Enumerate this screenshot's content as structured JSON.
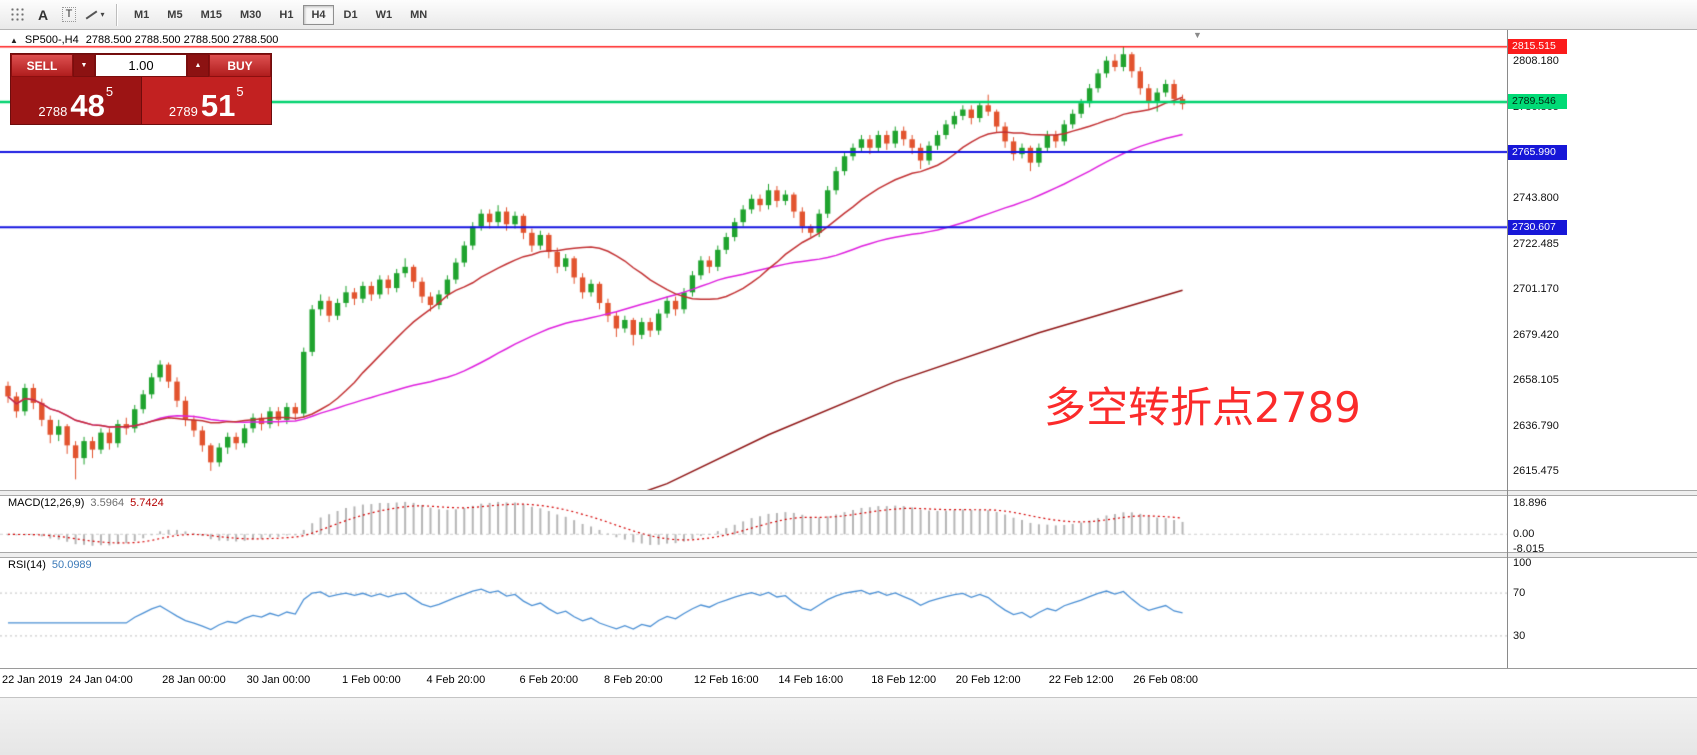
{
  "toolbar": {
    "icon_a": "A",
    "icon_t": "T",
    "timeframes": [
      "M1",
      "M5",
      "M15",
      "M30",
      "H1",
      "H4",
      "D1",
      "W1",
      "MN"
    ],
    "active_timeframe": "H4"
  },
  "chart": {
    "symbol_period": "SP500-,H4",
    "ohlc_line": "2788.500 2788.500 2788.500 2788.500",
    "annotation_text": "多空转折点2789",
    "annotation_color": "#fb2b2b",
    "axis_labels": [
      {
        "text": "2808.180",
        "price": 2808.18
      },
      {
        "text": "2786.865",
        "price": 2786.865
      },
      {
        "text": "2765.550",
        "price": 2765.55
      },
      {
        "text": "2743.800",
        "price": 2743.8
      },
      {
        "text": "2722.485",
        "price": 2722.485
      },
      {
        "text": "2701.170",
        "price": 2701.17
      },
      {
        "text": "2679.420",
        "price": 2679.42
      },
      {
        "text": "2658.105",
        "price": 2658.105
      },
      {
        "text": "2636.790",
        "price": 2636.79
      },
      {
        "text": "2615.475",
        "price": 2615.475
      }
    ],
    "price_tags": [
      {
        "text": "2815.515",
        "price": 2815.515,
        "bg": "#fb1b1b",
        "fg": "#ffffff"
      },
      {
        "text": "2789.546",
        "price": 2789.546,
        "bg": "#00db76",
        "fg": "#002510"
      },
      {
        "text": "2765.990",
        "price": 2765.99,
        "bg": "#1717d8",
        "fg": "#ffffff"
      },
      {
        "text": "2730.607",
        "price": 2730.607,
        "bg": "#1717d8",
        "fg": "#ffffff"
      }
    ],
    "hlines": [
      {
        "price": 2815.515,
        "color": "#ff1b1b",
        "width": 1.6
      },
      {
        "price": 2789.546,
        "color": "#00d26e",
        "width": 2.4
      },
      {
        "price": 2765.99,
        "color": "#1414e0",
        "width": 2
      },
      {
        "price": 2730.607,
        "color": "#1414e0",
        "width": 2
      }
    ],
    "date_labels": [
      {
        "text": "22 Jan 2019",
        "bar": 1
      },
      {
        "text": "24 Jan 04:00",
        "bar": 11
      },
      {
        "text": "28 Jan 00:00",
        "bar": 22
      },
      {
        "text": "30 Jan 00:00",
        "bar": 32
      },
      {
        "text": "1 Feb 00:00",
        "bar": 43
      },
      {
        "text": "4 Feb 20:00",
        "bar": 53
      },
      {
        "text": "6 Feb 20:00",
        "bar": 64
      },
      {
        "text": "8 Feb 20:00",
        "bar": 74
      },
      {
        "text": "12 Feb 16:00",
        "bar": 85
      },
      {
        "text": "14 Feb 16:00",
        "bar": 95
      },
      {
        "text": "18 Feb 12:00",
        "bar": 106
      },
      {
        "text": "20 Feb 12:00",
        "bar": 116
      },
      {
        "text": "22 Feb 12:00",
        "bar": 127
      },
      {
        "text": "26 Feb 08:00",
        "bar": 137
      }
    ]
  },
  "trade_panel": {
    "sell_label": "SELL",
    "buy_label": "BUY",
    "volume": "1.00",
    "sell_price_small": "2788",
    "sell_price_big": "48",
    "sell_price_sup": "5",
    "buy_price_small": "2789",
    "buy_price_big": "51",
    "buy_price_sup": "5"
  },
  "indicators": {
    "macd": {
      "label": "MACD(12,26,9)",
      "value_main": "3.5964",
      "value_signal": "5.7424",
      "fast": 12,
      "slow": 26,
      "signal": 9,
      "hist_color": "#b6b6b6",
      "signal_color": "#d40000",
      "range": [
        -9.5,
        20.5
      ],
      "axis": [
        {
          "text": "18.896",
          "v": 18.896
        },
        {
          "text": "0.00",
          "v": 0
        },
        {
          "text": "-8.015",
          "v": -8.015
        }
      ]
    },
    "rsi": {
      "label": "RSI(14)",
      "value": "50.0989",
      "period": 14,
      "levels": [
        70,
        30
      ],
      "line_color": "#4a8fd4",
      "axis": [
        {
          "text": "100",
          "v": 100
        },
        {
          "text": "70",
          "v": 70
        },
        {
          "text": "30",
          "v": 30
        }
      ]
    }
  },
  "chart_data": {
    "type": "candlestick",
    "symbol": "SP500-",
    "timeframe": "H4",
    "up_color": "#1fa32e",
    "down_color": "#e2532e",
    "ylim": [
      2607,
      2822
    ],
    "ma_fast": {
      "period": 18,
      "color": "#c23032"
    },
    "ma_mid": {
      "period": 50,
      "color": "#de1fde"
    },
    "ma_long": {
      "color": "#8f1616",
      "points": [
        [
          68,
          2596
        ],
        [
          78,
          2610
        ],
        [
          90,
          2633
        ],
        [
          105,
          2658
        ],
        [
          122,
          2681
        ],
        [
          139,
          2701
        ]
      ]
    },
    "candles": [
      [
        2656,
        2658,
        2648,
        2651
      ],
      [
        2651,
        2653,
        2641,
        2644
      ],
      [
        2644,
        2657,
        2642,
        2655
      ],
      [
        2655,
        2657,
        2645,
        2648
      ],
      [
        2648,
        2650,
        2637,
        2640
      ],
      [
        2640,
        2642,
        2629,
        2633
      ],
      [
        2633,
        2640,
        2630,
        2637
      ],
      [
        2637,
        2638,
        2624,
        2628
      ],
      [
        2628,
        2630,
        2612,
        2622
      ],
      [
        2622,
        2632,
        2619,
        2630
      ],
      [
        2630,
        2632,
        2622,
        2626
      ],
      [
        2626,
        2636,
        2624,
        2634
      ],
      [
        2634,
        2636,
        2626,
        2629
      ],
      [
        2629,
        2640,
        2627,
        2638
      ],
      [
        2638,
        2641,
        2633,
        2636
      ],
      [
        2636,
        2647,
        2634,
        2645
      ],
      [
        2645,
        2654,
        2643,
        2652
      ],
      [
        2652,
        2662,
        2650,
        2660
      ],
      [
        2660,
        2668,
        2658,
        2666
      ],
      [
        2666,
        2667,
        2655,
        2658
      ],
      [
        2658,
        2660,
        2646,
        2649
      ],
      [
        2649,
        2651,
        2637,
        2640
      ],
      [
        2640,
        2642,
        2632,
        2635
      ],
      [
        2635,
        2637,
        2625,
        2628
      ],
      [
        2628,
        2629,
        2616,
        2620
      ],
      [
        2620,
        2629,
        2618,
        2627
      ],
      [
        2627,
        2634,
        2624,
        2632
      ],
      [
        2632,
        2634,
        2626,
        2629
      ],
      [
        2629,
        2638,
        2627,
        2636
      ],
      [
        2636,
        2643,
        2634,
        2641
      ],
      [
        2641,
        2643,
        2635,
        2638
      ],
      [
        2638,
        2646,
        2636,
        2644
      ],
      [
        2644,
        2646,
        2637,
        2640
      ],
      [
        2640,
        2648,
        2638,
        2646
      ],
      [
        2646,
        2648,
        2640,
        2643
      ],
      [
        2643,
        2674,
        2641,
        2672
      ],
      [
        2672,
        2694,
        2670,
        2692
      ],
      [
        2692,
        2699,
        2689,
        2696
      ],
      [
        2696,
        2698,
        2686,
        2689
      ],
      [
        2689,
        2697,
        2687,
        2695
      ],
      [
        2695,
        2703,
        2693,
        2700
      ],
      [
        2700,
        2702,
        2694,
        2697
      ],
      [
        2697,
        2705,
        2695,
        2703
      ],
      [
        2703,
        2705,
        2696,
        2699
      ],
      [
        2699,
        2708,
        2697,
        2706
      ],
      [
        2706,
        2708,
        2699,
        2702
      ],
      [
        2702,
        2711,
        2700,
        2709
      ],
      [
        2709,
        2716,
        2707,
        2712
      ],
      [
        2712,
        2713,
        2702,
        2705
      ],
      [
        2705,
        2707,
        2695,
        2698
      ],
      [
        2698,
        2700,
        2691,
        2694
      ],
      [
        2694,
        2701,
        2692,
        2699
      ],
      [
        2699,
        2708,
        2697,
        2706
      ],
      [
        2706,
        2716,
        2704,
        2714
      ],
      [
        2714,
        2724,
        2712,
        2722
      ],
      [
        2722,
        2733,
        2720,
        2731
      ],
      [
        2731,
        2739,
        2729,
        2737
      ],
      [
        2737,
        2739,
        2730,
        2733
      ],
      [
        2733,
        2741,
        2731,
        2738
      ],
      [
        2738,
        2740,
        2729,
        2732
      ],
      [
        2732,
        2738,
        2730,
        2736
      ],
      [
        2736,
        2737,
        2725,
        2728
      ],
      [
        2728,
        2730,
        2719,
        2722
      ],
      [
        2722,
        2729,
        2720,
        2727
      ],
      [
        2727,
        2728,
        2716,
        2719
      ],
      [
        2719,
        2721,
        2709,
        2712
      ],
      [
        2712,
        2718,
        2710,
        2716
      ],
      [
        2716,
        2717,
        2704,
        2707
      ],
      [
        2707,
        2709,
        2697,
        2700
      ],
      [
        2700,
        2706,
        2698,
        2704
      ],
      [
        2704,
        2705,
        2692,
        2695
      ],
      [
        2695,
        2697,
        2686,
        2689
      ],
      [
        2689,
        2691,
        2679,
        2683
      ],
      [
        2683,
        2689,
        2681,
        2687
      ],
      [
        2687,
        2688,
        2675,
        2680
      ],
      [
        2680,
        2688,
        2678,
        2686
      ],
      [
        2686,
        2688,
        2679,
        2682
      ],
      [
        2682,
        2692,
        2680,
        2690
      ],
      [
        2690,
        2698,
        2688,
        2696
      ],
      [
        2696,
        2698,
        2689,
        2692
      ],
      [
        2692,
        2702,
        2690,
        2700
      ],
      [
        2700,
        2710,
        2698,
        2708
      ],
      [
        2708,
        2717,
        2706,
        2715
      ],
      [
        2715,
        2717,
        2709,
        2712
      ],
      [
        2712,
        2722,
        2710,
        2720
      ],
      [
        2720,
        2728,
        2718,
        2726
      ],
      [
        2726,
        2735,
        2724,
        2733
      ],
      [
        2733,
        2741,
        2731,
        2739
      ],
      [
        2739,
        2746,
        2737,
        2744
      ],
      [
        2744,
        2746,
        2738,
        2741
      ],
      [
        2741,
        2751,
        2739,
        2748
      ],
      [
        2748,
        2750,
        2740,
        2743
      ],
      [
        2743,
        2748,
        2741,
        2746
      ],
      [
        2746,
        2747,
        2735,
        2738
      ],
      [
        2738,
        2740,
        2728,
        2731
      ],
      [
        2731,
        2732,
        2726,
        2728
      ],
      [
        2728,
        2739,
        2726,
        2737
      ],
      [
        2737,
        2750,
        2735,
        2748
      ],
      [
        2748,
        2759,
        2746,
        2757
      ],
      [
        2757,
        2766,
        2755,
        2764
      ],
      [
        2764,
        2770,
        2762,
        2768
      ],
      [
        2768,
        2774,
        2766,
        2772
      ],
      [
        2772,
        2774,
        2765,
        2768
      ],
      [
        2768,
        2776,
        2766,
        2774
      ],
      [
        2774,
        2776,
        2767,
        2770
      ],
      [
        2770,
        2778,
        2768,
        2776
      ],
      [
        2776,
        2778,
        2769,
        2772
      ],
      [
        2772,
        2774,
        2765,
        2768
      ],
      [
        2768,
        2770,
        2758,
        2762
      ],
      [
        2762,
        2771,
        2760,
        2769
      ],
      [
        2769,
        2776,
        2767,
        2774
      ],
      [
        2774,
        2781,
        2772,
        2779
      ],
      [
        2779,
        2785,
        2777,
        2783
      ],
      [
        2783,
        2788,
        2781,
        2786
      ],
      [
        2786,
        2788,
        2779,
        2782
      ],
      [
        2782,
        2790,
        2780,
        2788
      ],
      [
        2788,
        2793,
        2783,
        2785
      ],
      [
        2785,
        2786,
        2775,
        2778
      ],
      [
        2778,
        2780,
        2768,
        2771
      ],
      [
        2771,
        2773,
        2762,
        2765
      ],
      [
        2765,
        2770,
        2763,
        2768
      ],
      [
        2768,
        2769,
        2757,
        2761
      ],
      [
        2761,
        2770,
        2759,
        2768
      ],
      [
        2768,
        2776,
        2766,
        2774
      ],
      [
        2774,
        2776,
        2768,
        2771
      ],
      [
        2771,
        2781,
        2769,
        2779
      ],
      [
        2779,
        2786,
        2777,
        2784
      ],
      [
        2784,
        2791,
        2782,
        2789
      ],
      [
        2789,
        2798,
        2787,
        2796
      ],
      [
        2796,
        2805,
        2794,
        2803
      ],
      [
        2803,
        2811,
        2801,
        2809
      ],
      [
        2809,
        2812,
        2804,
        2806
      ],
      [
        2806,
        2815.5,
        2804,
        2812
      ],
      [
        2812,
        2813,
        2801,
        2804
      ],
      [
        2804,
        2806,
        2793,
        2796
      ],
      [
        2796,
        2798,
        2786,
        2790
      ],
      [
        2790,
        2796,
        2785,
        2794
      ],
      [
        2794,
        2800,
        2792,
        2798
      ],
      [
        2798,
        2800,
        2788,
        2791
      ],
      [
        2791,
        2793,
        2786,
        2788.5
      ]
    ]
  }
}
